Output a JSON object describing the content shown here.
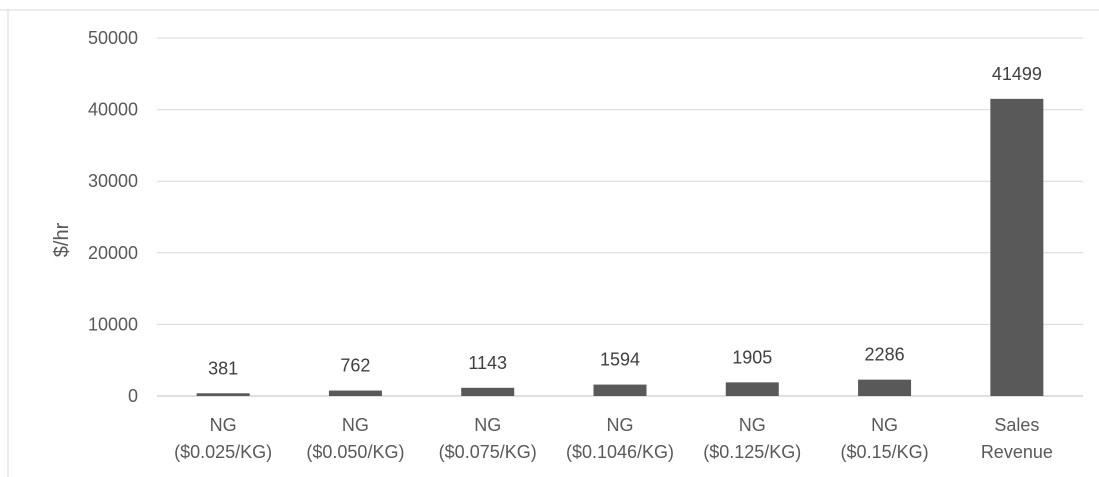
{
  "chart_data": {
    "type": "bar",
    "title": "",
    "xlabel": "",
    "ylabel": "$/hr",
    "ylim": [
      0,
      50000
    ],
    "yticks": [
      0,
      10000,
      20000,
      30000,
      40000,
      50000
    ],
    "grid": true,
    "legend": "none",
    "categories": [
      [
        "NG",
        "($0.025/KG)"
      ],
      [
        "NG",
        "($0.050/KG)"
      ],
      [
        "NG",
        "($0.075/KG)"
      ],
      [
        "NG",
        "($0.1046/KG)"
      ],
      [
        "NG",
        "($0.125/KG)"
      ],
      [
        "NG",
        "($0.15/KG)"
      ],
      [
        "Sales",
        "Revenue"
      ]
    ],
    "values": [
      381,
      762,
      1143,
      1594,
      1905,
      2286,
      41499
    ],
    "data_labels": [
      "381",
      "762",
      "1143",
      "1594",
      "1905",
      "2286",
      "41499"
    ],
    "colors": {
      "bar": "#595959",
      "gridline": "#d9d9d9",
      "axis": "#bfbfbf",
      "frame": "#d9d9d9"
    }
  }
}
